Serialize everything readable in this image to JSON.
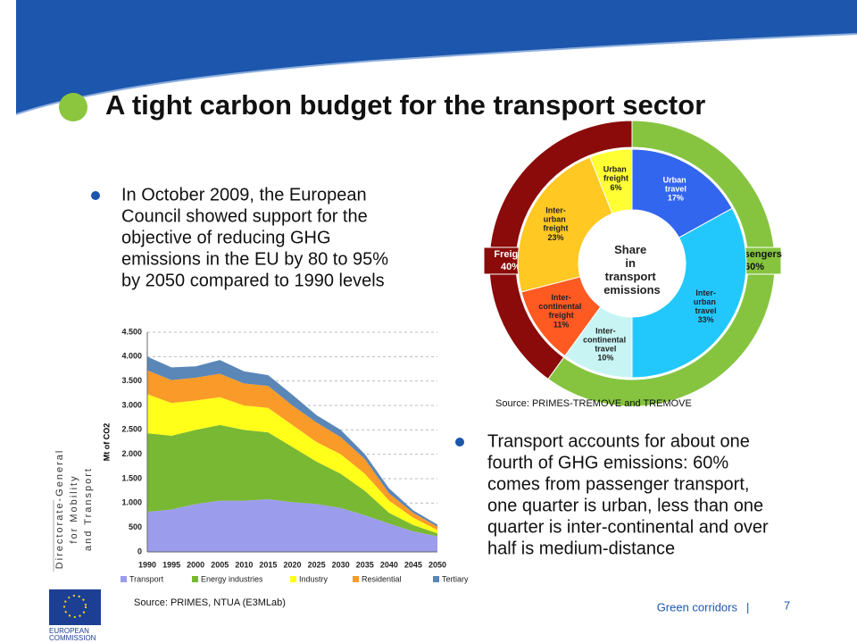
{
  "title": "A tight carbon budget for the transport sector",
  "bullet1": [
    "In October 2009, the European",
    "Council showed support for the",
    "objective of reducing GHG",
    "emissions in the EU by 80 to 95%",
    "by 2050 compared to 1990 levels"
  ],
  "bullet2": [
    "Transport accounts for about one",
    "fourth of GHG emissions: 60%",
    "comes from passenger transport,",
    "one quarter is urban, less than one",
    "quarter is inter-continental and over",
    "half is medium-distance"
  ],
  "sidebar": [
    "Directorate-General",
    "for Mobility",
    "and Transport"
  ],
  "logo_text": [
    "EUROPEAN",
    "COMMISSION"
  ],
  "footer": {
    "section": "Green corridors",
    "separator": "|",
    "page": "7"
  },
  "chart_data": [
    {
      "type": "stacked_area",
      "y_label": "Mt of CO2",
      "source": "Source: PRIMES, NTUA (E3MLab)",
      "x": [
        1990,
        1995,
        2000,
        2005,
        2010,
        2015,
        2020,
        2025,
        2030,
        2035,
        2040,
        2045,
        2050
      ],
      "xlim": [
        1990,
        2050
      ],
      "ylim": [
        0,
        4500
      ],
      "yticks": [
        0,
        500,
        {
          "value": 1000,
          "label": "1.000"
        },
        {
          "value": 1500,
          "label": "1.500"
        },
        {
          "value": 2000,
          "label": "2.000"
        },
        {
          "value": 2500,
          "label": "2.500"
        },
        {
          "value": 3000,
          "label": "3.000"
        },
        {
          "value": 3500,
          "label": "3.500"
        },
        {
          "value": 4000,
          "label": "4.000"
        },
        {
          "value": 4500,
          "label": "4.500"
        }
      ],
      "grid": true,
      "series": [
        {
          "name": "Transport",
          "color": "#9c9cec",
          "values": [
            820,
            870,
            980,
            1050,
            1050,
            1080,
            1020,
            980,
            900,
            750,
            580,
            420,
            320
          ]
        },
        {
          "name": "Energy industries",
          "color": "#79b833",
          "values": [
            1610,
            1510,
            1520,
            1550,
            1450,
            1370,
            1130,
            870,
            700,
            500,
            220,
            130,
            60
          ]
        },
        {
          "name": "Industry",
          "color": "#ffff1a",
          "values": [
            800,
            670,
            600,
            570,
            500,
            500,
            450,
            400,
            400,
            350,
            250,
            150,
            70
          ]
        },
        {
          "name": "Residential",
          "color": "#fa9a28",
          "values": [
            490,
            470,
            470,
            480,
            450,
            450,
            400,
            400,
            350,
            300,
            150,
            100,
            70
          ]
        },
        {
          "name": "Tertiary",
          "color": "#5a86b8",
          "values": [
            280,
            260,
            230,
            280,
            250,
            220,
            220,
            150,
            150,
            100,
            100,
            50,
            40
          ]
        }
      ]
    },
    {
      "type": "donut",
      "center_label": "Share in transport emissions",
      "source": "Source: PRIMES-TREMOVE and TREMOVE",
      "inner": {
        "categories": [
          "Urban travel",
          "Inter-urban travel",
          "Inter-continental travel",
          "Inter-continental freight",
          "Inter-urban freight",
          "Urban freight"
        ],
        "values": [
          17,
          33,
          10,
          11,
          23,
          6
        ],
        "value_labels": [
          "17%",
          "33%",
          "10%",
          "11%",
          "23%",
          "6%"
        ],
        "colors": [
          "#3366ee",
          "#22c8fc",
          "#c8f4f4",
          "#ff5a22",
          "#ffc822",
          "#ffff33"
        ]
      },
      "outer": {
        "categories": [
          "Passengers",
          "Freight"
        ],
        "values": [
          60,
          40
        ],
        "value_labels": [
          "60%",
          "40%"
        ],
        "colors": [
          "#86c440",
          "#8b0a0a"
        ]
      }
    }
  ]
}
